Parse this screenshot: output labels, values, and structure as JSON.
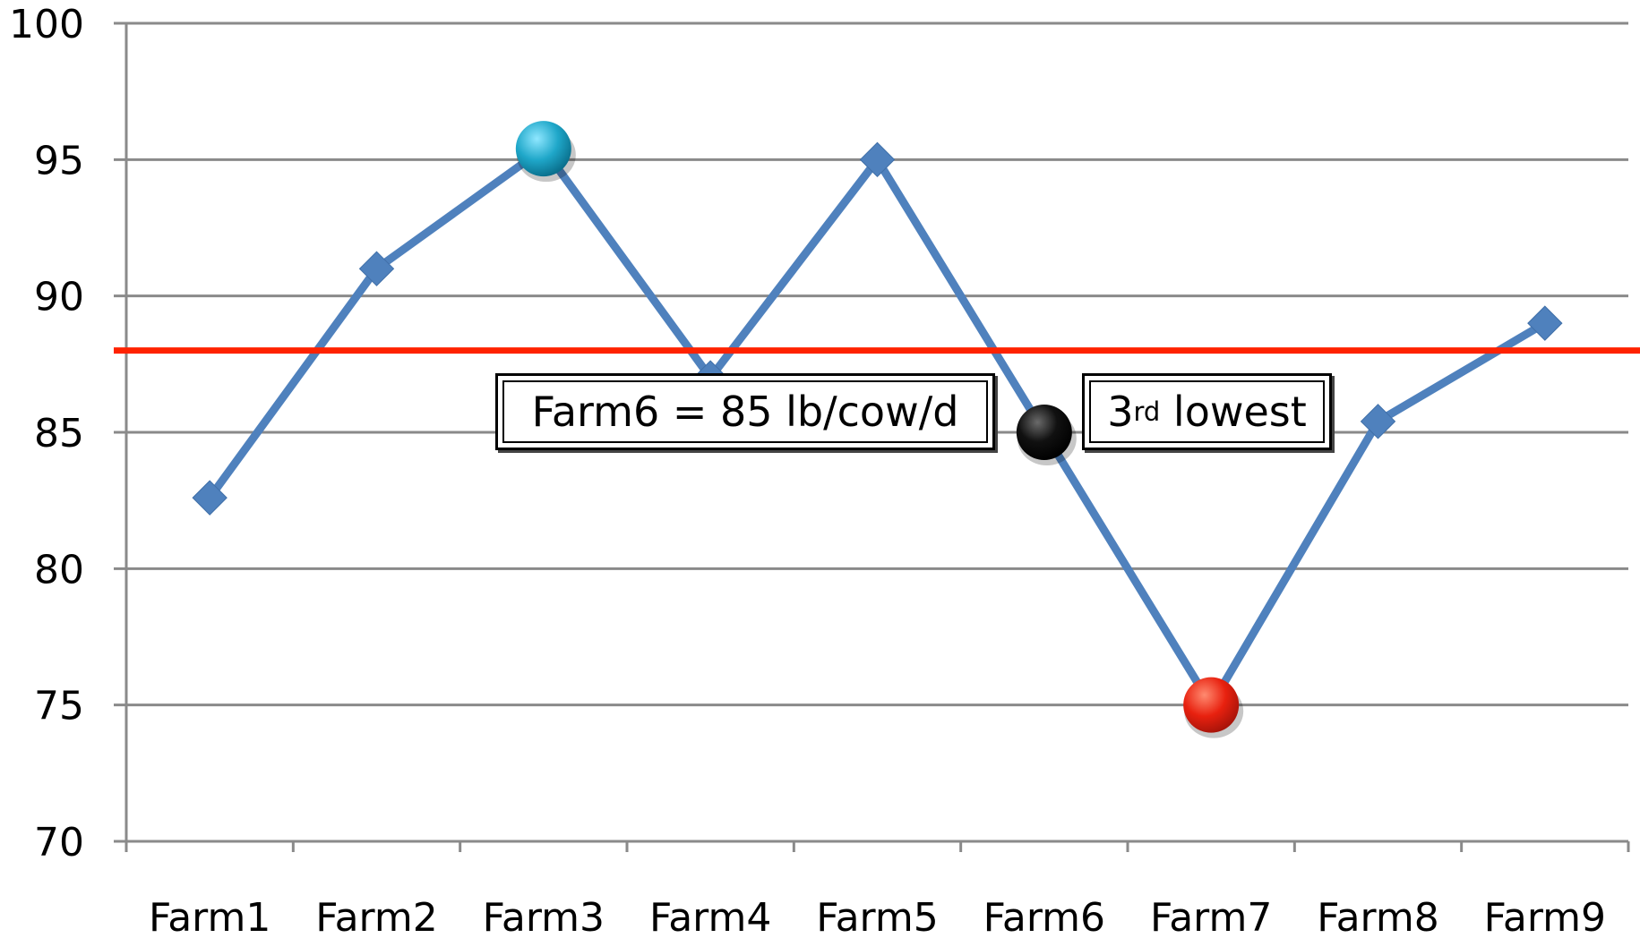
{
  "chart_data": {
    "type": "line",
    "title": "",
    "xlabel": "",
    "ylabel": "",
    "categories": [
      "Farm1",
      "Farm2",
      "Farm3",
      "Farm4",
      "Farm5",
      "Farm6",
      "Farm7",
      "Farm8",
      "Farm9"
    ],
    "series": [
      {
        "values": [
          82.6,
          91.0,
          95.4,
          87.0,
          95.0,
          85.0,
          75.0,
          85.4,
          89.0
        ],
        "color": "#4F81BD",
        "marker": "diamond"
      }
    ],
    "ylim": [
      70,
      100
    ],
    "yticks": [
      70,
      75,
      80,
      85,
      90,
      95,
      100
    ],
    "grid": true,
    "reference_line": {
      "value": 88.0,
      "color": "#FF2200"
    },
    "highlights": [
      {
        "category": "Farm3",
        "value": 95.4,
        "color": "#1FA7C9"
      },
      {
        "category": "Farm6",
        "value": 85.0,
        "color": "#000000"
      },
      {
        "category": "Farm7",
        "value": 75.0,
        "color": "#E8210F"
      }
    ],
    "annotations": [
      {
        "id": "farm6_value",
        "text": "Farm6 = 85 lb/cow/d"
      },
      {
        "id": "rank",
        "number": "3",
        "suffix": "rd",
        "text": " lowest"
      }
    ]
  }
}
